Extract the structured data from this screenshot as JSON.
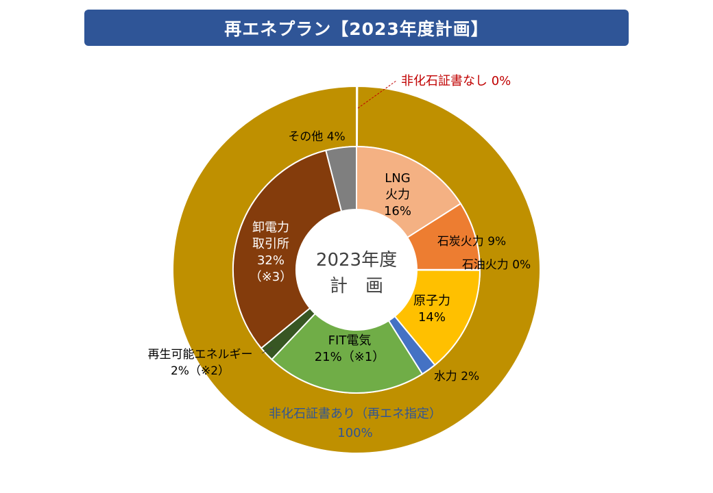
{
  "title": "再エネプラン【2023年度計画】",
  "chart_data": [
    {
      "type": "pie",
      "ring": "outer",
      "series": [
        {
          "label": "非化石証書なし",
          "value": 0,
          "color": "#c00000",
          "text": "非化石証書なし 0%"
        },
        {
          "label": "非化石証書あり（再エネ指定）",
          "value": 100,
          "color": "#bf9000",
          "text": [
            "非化石証書あり（再エネ指定）",
            "100%"
          ]
        }
      ]
    },
    {
      "type": "pie",
      "ring": "inner",
      "center_label": [
        "2023年度",
        "計　画"
      ],
      "series": [
        {
          "label": "LNG火力",
          "value": 16,
          "color": "#f4b183",
          "text": [
            "LNG",
            "火力",
            "16%"
          ]
        },
        {
          "label": "石炭火力",
          "value": 9,
          "color": "#ed7d31",
          "text": [
            "石炭火力 9%"
          ]
        },
        {
          "label": "石油火力",
          "value": 0,
          "color": "#ffffff",
          "text": [
            "石油火力 0%"
          ]
        },
        {
          "label": "原子力",
          "value": 14,
          "color": "#ffc000",
          "text": [
            "原子力",
            "14%"
          ]
        },
        {
          "label": "水力",
          "value": 2,
          "color": "#4472c4",
          "text": [
            "水力 2%"
          ]
        },
        {
          "label": "FIT電気",
          "value": 21,
          "color": "#70ad47",
          "text": [
            "FIT電気",
            "21%（※1）"
          ]
        },
        {
          "label": "再生可能エネルギー",
          "value": 2,
          "color": "#375623",
          "text": [
            "再生可能エネルギー",
            "2%（※2）"
          ]
        },
        {
          "label": "卸電力取引所",
          "value": 32,
          "color": "#843c0c",
          "text": [
            "卸電力",
            "取引所",
            "32%",
            "（※3）"
          ]
        },
        {
          "label": "その他",
          "value": 4,
          "color": "#7f7f7f",
          "text": [
            "その他 4%"
          ]
        }
      ]
    }
  ]
}
